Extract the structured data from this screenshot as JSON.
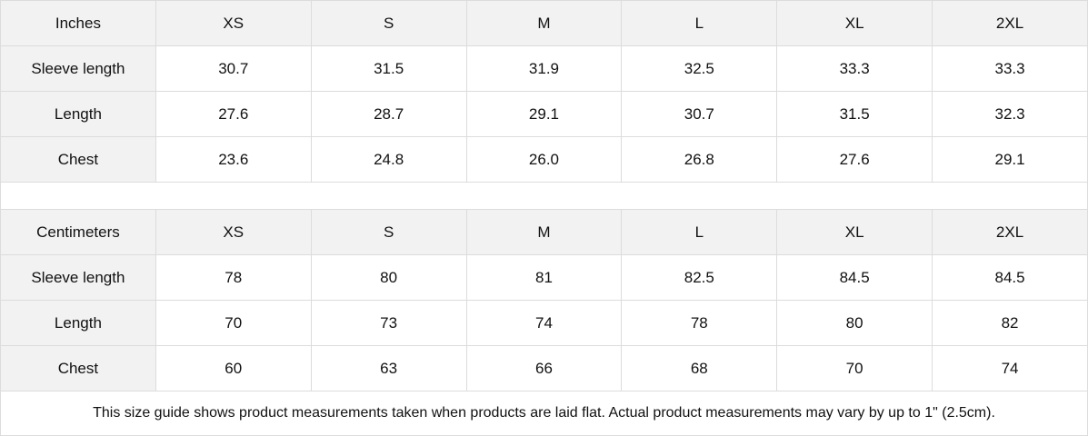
{
  "tables": [
    {
      "unit": "Inches",
      "sizes": [
        "XS",
        "S",
        "M",
        "L",
        "XL",
        "2XL"
      ],
      "rows": [
        {
          "label": "Sleeve length",
          "values": [
            "30.7",
            "31.5",
            "31.9",
            "32.5",
            "33.3",
            "33.3"
          ]
        },
        {
          "label": "Length",
          "values": [
            "27.6",
            "28.7",
            "29.1",
            "30.7",
            "31.5",
            "32.3"
          ]
        },
        {
          "label": "Chest",
          "values": [
            "23.6",
            "24.8",
            "26.0",
            "26.8",
            "27.6",
            "29.1"
          ]
        }
      ]
    },
    {
      "unit": "Centimeters",
      "sizes": [
        "XS",
        "S",
        "M",
        "L",
        "XL",
        "2XL"
      ],
      "rows": [
        {
          "label": "Sleeve length",
          "values": [
            "78",
            "80",
            "81",
            "82.5",
            "84.5",
            "84.5"
          ]
        },
        {
          "label": "Length",
          "values": [
            "70",
            "73",
            "74",
            "78",
            "80",
            "82"
          ]
        },
        {
          "label": "Chest",
          "values": [
            "60",
            "63",
            "66",
            "68",
            "70",
            "74"
          ]
        }
      ]
    }
  ],
  "footnote": "This size guide shows product measurements taken when products are laid flat.  Actual product measurements may vary by up to 1\" (2.5cm).",
  "colors": {
    "header_bg": "#f2f2f2",
    "border": "#dcdcdc"
  }
}
